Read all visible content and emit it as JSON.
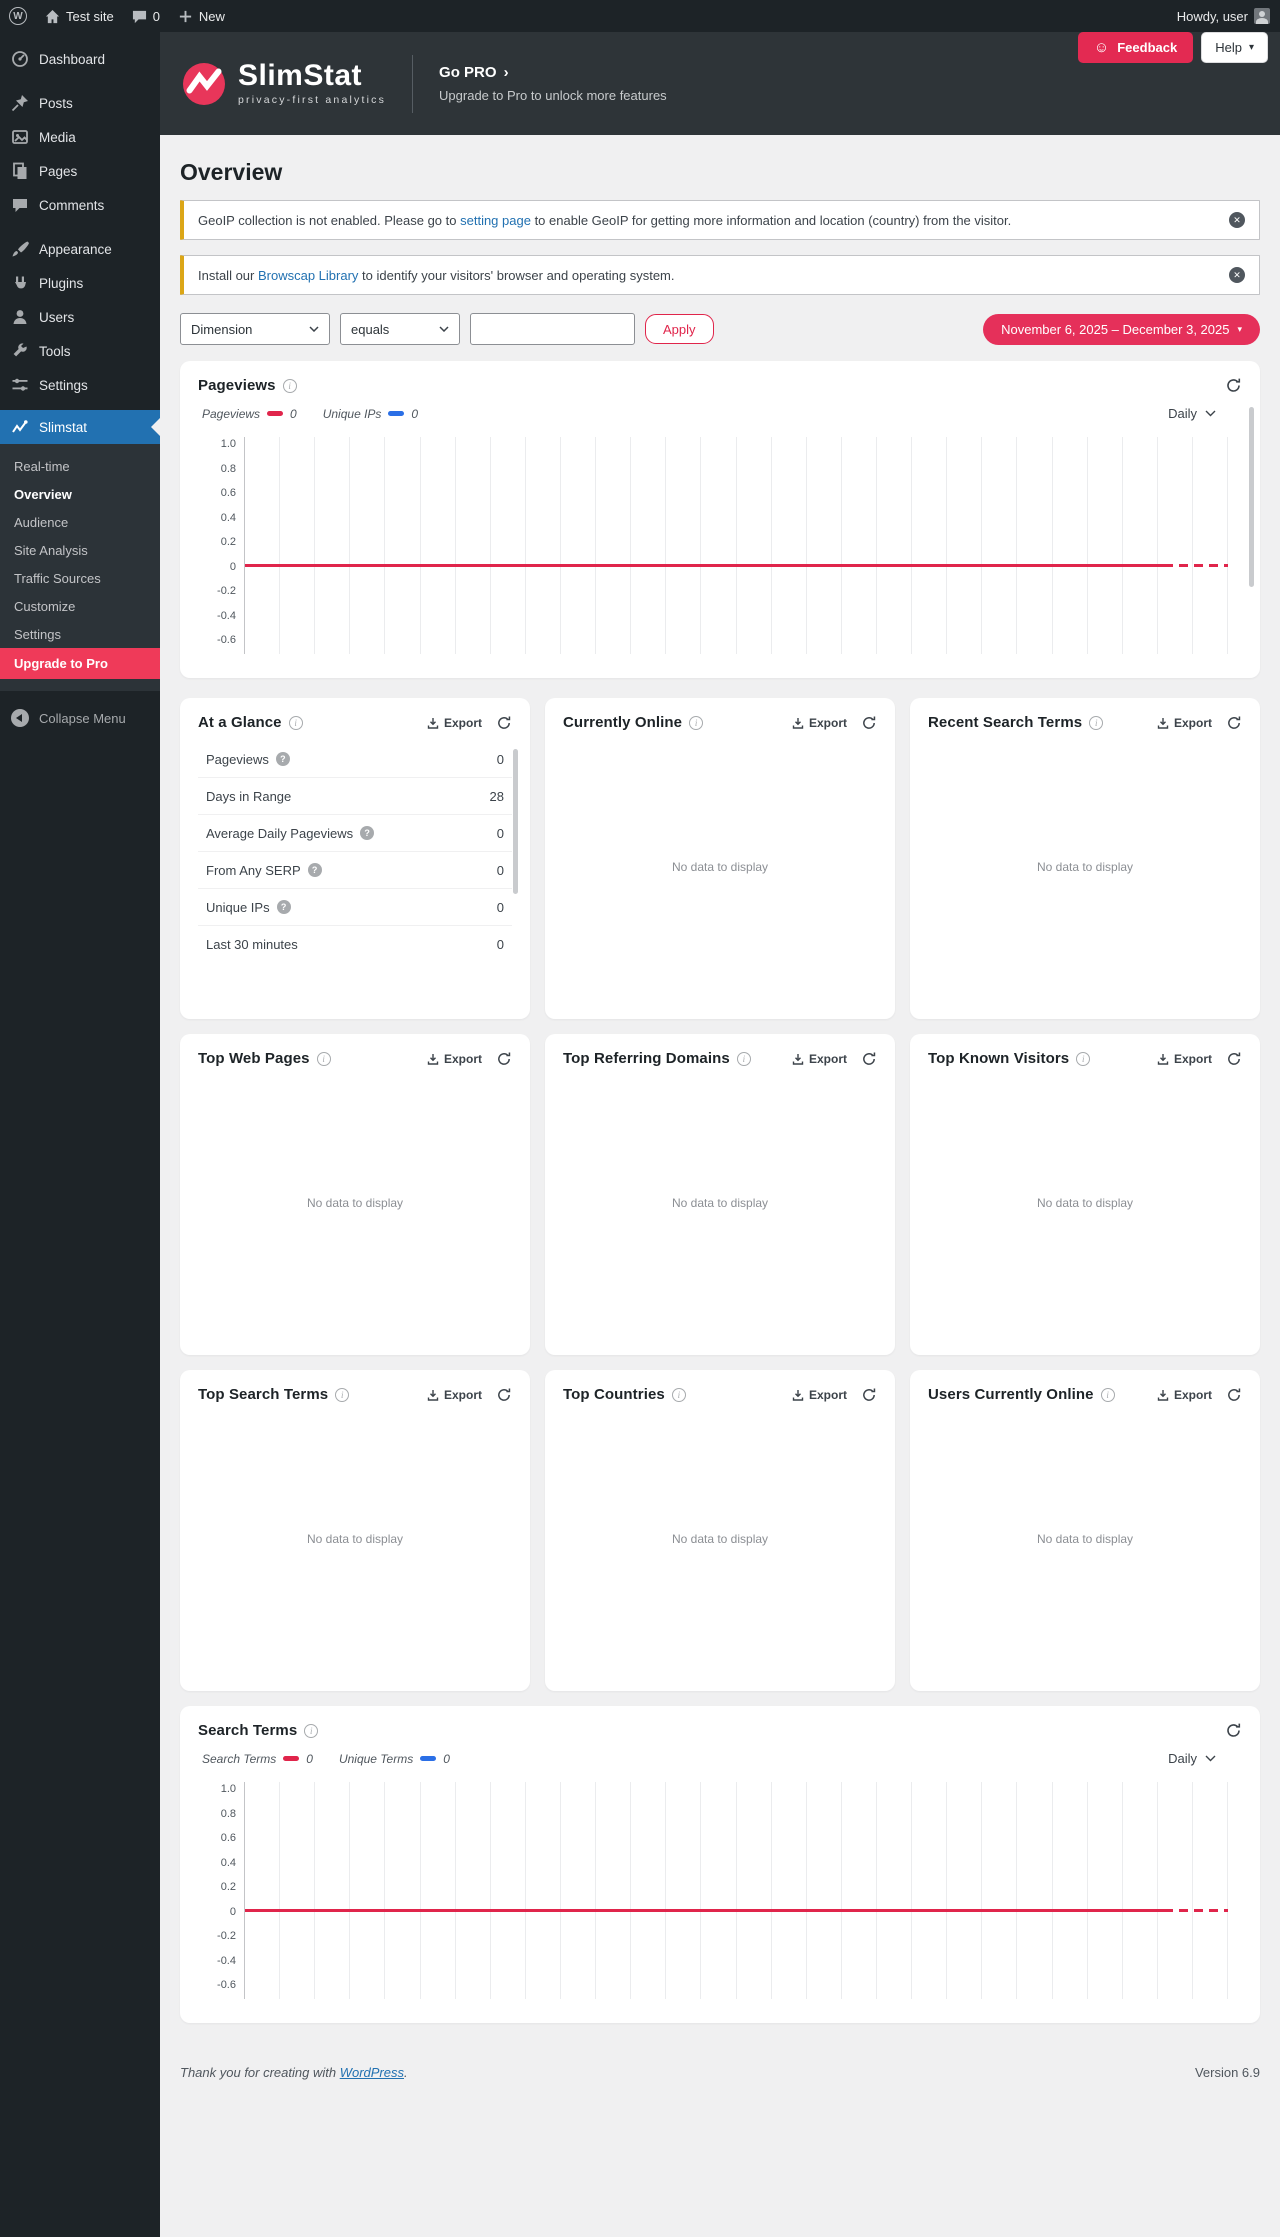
{
  "colors": {
    "accent_red": "#e0254b",
    "menu_highlight_blue": "#2271b1",
    "upgrade_red": "#ef3a59",
    "notice_border_yellow": "#dba617",
    "link_blue": "#2271b1",
    "legend_blue": "#2b6fe6",
    "header_dark": "#2e3438"
  },
  "admin_bar": {
    "site_name": "Test site",
    "comments_count": "0",
    "new_label": "New",
    "howdy": "Howdy, user"
  },
  "sidebar": {
    "items": [
      {
        "label": "Dashboard"
      },
      {
        "label": "Posts"
      },
      {
        "label": "Media"
      },
      {
        "label": "Pages"
      },
      {
        "label": "Comments"
      },
      {
        "label": "Appearance"
      },
      {
        "label": "Plugins"
      },
      {
        "label": "Users"
      },
      {
        "label": "Tools"
      },
      {
        "label": "Settings"
      }
    ],
    "slimstat_label": "Slimstat",
    "submenu": [
      {
        "label": "Real-time"
      },
      {
        "label": "Overview",
        "current": true
      },
      {
        "label": "Audience"
      },
      {
        "label": "Site Analysis"
      },
      {
        "label": "Traffic Sources"
      },
      {
        "label": "Customize"
      },
      {
        "label": "Settings"
      },
      {
        "label": "Upgrade to Pro",
        "highlight": true
      }
    ],
    "collapse_label": "Collapse Menu"
  },
  "brand_header": {
    "name": "SlimStat",
    "tagline": "privacy-first analytics",
    "go_pro": "Go PRO",
    "go_pro_chevron": "›",
    "subtitle": "Upgrade to Pro to unlock more features",
    "feedback_label": "Feedback",
    "feedback_icon": "☺",
    "help_label": "Help",
    "help_caret": "▾"
  },
  "page_title": "Overview",
  "notices": [
    {
      "before": "GeoIP collection is not enabled. Please go to ",
      "link": "setting page",
      "after": " to enable GeoIP for getting more information and location (country) from the visitor."
    },
    {
      "before": "Install our ",
      "link": "Browscap Library",
      "after": " to identify your visitors' browser and operating system."
    }
  ],
  "filter_bar": {
    "dimension_value": "Dimension",
    "operator_value": "equals",
    "input_value": "",
    "apply_label": "Apply",
    "date_range": "November 6, 2025 – December 3, 2025",
    "date_caret": "▾"
  },
  "shared": {
    "export_label": "Export",
    "no_data_text": "No data to display",
    "daily_label": "Daily"
  },
  "charts": {
    "pageviews": {
      "title": "Pageviews",
      "legend": [
        {
          "label": "Pageviews",
          "value": "0",
          "color": "#e0254b"
        },
        {
          "label": "Unique IPs",
          "value": "0",
          "color": "#2b6fe6"
        }
      ],
      "period": "Daily",
      "yticks": [
        "1.0",
        "0.8",
        "0.6",
        "0.4",
        "0.2",
        "0",
        "-0.2",
        "-0.4",
        "-0.6"
      ],
      "days": 28
    },
    "search_terms": {
      "title": "Search Terms",
      "legend": [
        {
          "label": "Search Terms",
          "value": "0",
          "color": "#e0254b"
        },
        {
          "label": "Unique Terms",
          "value": "0",
          "color": "#2b6fe6"
        }
      ],
      "period": "Daily",
      "yticks": [
        "1.0",
        "0.8",
        "0.6",
        "0.4",
        "0.2",
        "0",
        "-0.2",
        "-0.4",
        "-0.6"
      ],
      "days": 28
    }
  },
  "chart_data": [
    {
      "type": "line",
      "title": "Pageviews",
      "interval": "Daily",
      "x_range": [
        "November 6, 2025",
        "December 3, 2025"
      ],
      "x_count": 28,
      "ylim": [
        -0.7,
        1.05
      ],
      "yticks": [
        1.0,
        0.8,
        0.6,
        0.4,
        0.2,
        0,
        -0.2,
        -0.4,
        -0.6
      ],
      "grid": "vertical daily gridlines, zero baseline solid with dashed projection tail",
      "legend_position": "top-left",
      "series": [
        {
          "name": "Pageviews",
          "color": "#e0254b",
          "values": [
            0,
            0,
            0,
            0,
            0,
            0,
            0,
            0,
            0,
            0,
            0,
            0,
            0,
            0,
            0,
            0,
            0,
            0,
            0,
            0,
            0,
            0,
            0,
            0,
            0,
            0,
            0,
            0
          ]
        },
        {
          "name": "Unique IPs",
          "color": "#2b6fe6",
          "values": [
            0,
            0,
            0,
            0,
            0,
            0,
            0,
            0,
            0,
            0,
            0,
            0,
            0,
            0,
            0,
            0,
            0,
            0,
            0,
            0,
            0,
            0,
            0,
            0,
            0,
            0,
            0,
            0
          ]
        }
      ]
    },
    {
      "type": "line",
      "title": "Search Terms",
      "interval": "Daily",
      "x_range": [
        "November 6, 2025",
        "December 3, 2025"
      ],
      "x_count": 28,
      "ylim": [
        -0.7,
        1.05
      ],
      "yticks": [
        1.0,
        0.8,
        0.6,
        0.4,
        0.2,
        0,
        -0.2,
        -0.4,
        -0.6
      ],
      "grid": "vertical daily gridlines, zero baseline solid with dashed projection tail",
      "legend_position": "top-left",
      "series": [
        {
          "name": "Search Terms",
          "color": "#e0254b",
          "values": [
            0,
            0,
            0,
            0,
            0,
            0,
            0,
            0,
            0,
            0,
            0,
            0,
            0,
            0,
            0,
            0,
            0,
            0,
            0,
            0,
            0,
            0,
            0,
            0,
            0,
            0,
            0,
            0
          ]
        },
        {
          "name": "Unique Terms",
          "color": "#2b6fe6",
          "values": [
            0,
            0,
            0,
            0,
            0,
            0,
            0,
            0,
            0,
            0,
            0,
            0,
            0,
            0,
            0,
            0,
            0,
            0,
            0,
            0,
            0,
            0,
            0,
            0,
            0,
            0,
            0,
            0
          ]
        }
      ]
    }
  ],
  "panels": {
    "at_a_glance": {
      "title": "At a Glance",
      "rows": [
        {
          "label": "Pageviews",
          "value": "0",
          "help": true
        },
        {
          "label": "Days in Range",
          "value": "28",
          "help": false
        },
        {
          "label": "Average Daily Pageviews",
          "value": "0",
          "help": true
        },
        {
          "label": "From Any SERP",
          "value": "0",
          "help": true
        },
        {
          "label": "Unique IPs",
          "value": "0",
          "help": true
        },
        {
          "label": "Last 30 minutes",
          "value": "0",
          "help": false
        }
      ]
    },
    "no_data": [
      {
        "title": "Currently Online"
      },
      {
        "title": "Recent Search Terms"
      },
      {
        "title": "Top Web Pages"
      },
      {
        "title": "Top Referring Domains"
      },
      {
        "title": "Top Known Visitors"
      },
      {
        "title": "Top Search Terms"
      },
      {
        "title": "Top Countries"
      },
      {
        "title": "Users Currently Online"
      }
    ]
  },
  "footer": {
    "thanks_prefix": "Thank you for creating with ",
    "wordpress_link": "WordPress",
    "thanks_suffix": ".",
    "version": "Version 6.9"
  }
}
